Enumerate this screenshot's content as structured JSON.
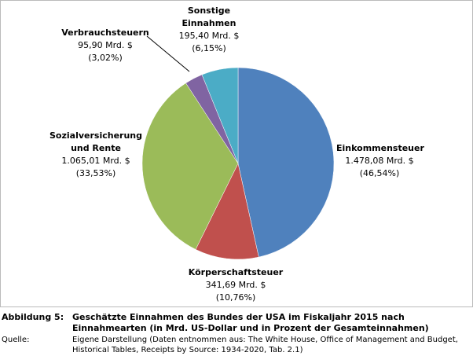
{
  "chart_data": {
    "type": "pie",
    "categories": [
      "Einkommensteuer",
      "Körperschaftsteuer",
      "Sozialversicherung und Rente",
      "Verbrauchsteuern",
      "Sonstige Einnahmen"
    ],
    "values": [
      1478.08,
      341.69,
      1065.01,
      95.9,
      195.4
    ],
    "value_labels": [
      "1.478,08 Mrd. $",
      "341,69 Mrd. $",
      "1.065,01 Mrd. $",
      "95,90 Mrd. $",
      "195,40 Mrd. $"
    ],
    "percents": [
      46.54,
      10.76,
      33.53,
      3.02,
      6.15
    ],
    "percent_labels": [
      "(46,54%)",
      "(10,76%)",
      "(33,53%)",
      "(3,02%)",
      "(6,15%)"
    ],
    "colors": [
      "#4f81bd",
      "#c0504d",
      "#9bbb59",
      "#8064a2",
      "#4bacc6"
    ]
  },
  "caption": {
    "label": "Abbildung 5:",
    "title": "Geschätzte Einnahmen des Bundes der USA im Fiskaljahr 2015 nach Einnahmearten (in Mrd. US-Dollar und in Prozent der Gesamteinnahmen)",
    "source_label": "Quelle:",
    "source": "Eigene Darstellung (Daten entnommen aus: The White House, Office of Management and Budget, Historical Tables, Receipts by Source: 1934-2020, Tab. 2.1)"
  }
}
